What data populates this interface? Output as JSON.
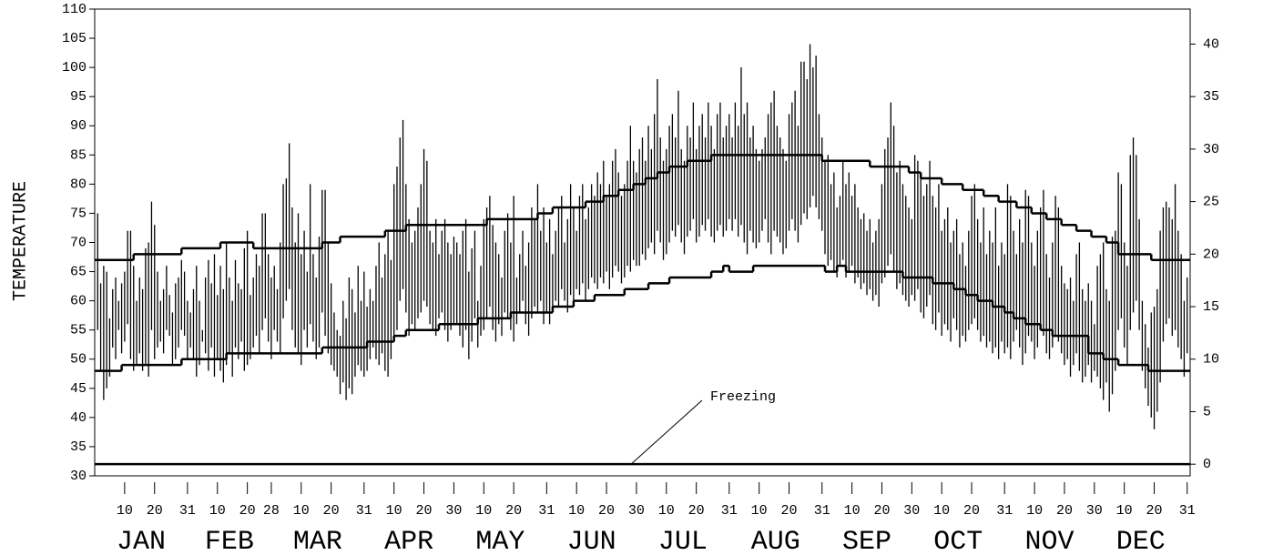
{
  "chart_data": {
    "type": "range",
    "y_label": "TEMPERATURE",
    "ylim": [
      30,
      110
    ],
    "yticks": [
      30,
      35,
      40,
      45,
      50,
      55,
      60,
      65,
      70,
      75,
      80,
      85,
      90,
      95,
      100,
      105,
      110
    ],
    "y2lim": [
      -1.11,
      43.33
    ],
    "y2ticks": [
      0,
      5,
      10,
      15,
      20,
      25,
      30,
      35,
      40
    ],
    "xlim": [
      0,
      366
    ],
    "xticks": [
      {
        "value": 10,
        "label": "10"
      },
      {
        "value": 20,
        "label": "20"
      },
      {
        "value": 31,
        "label": "31"
      },
      {
        "value": 41,
        "label": "10"
      },
      {
        "value": 51,
        "label": "20"
      },
      {
        "value": 59,
        "label": "28"
      },
      {
        "value": 69,
        "label": "10"
      },
      {
        "value": 79,
        "label": "20"
      },
      {
        "value": 90,
        "label": "31"
      },
      {
        "value": 100,
        "label": "10"
      },
      {
        "value": 110,
        "label": "20"
      },
      {
        "value": 120,
        "label": "30"
      },
      {
        "value": 130,
        "label": "10"
      },
      {
        "value": 140,
        "label": "20"
      },
      {
        "value": 151,
        "label": "31"
      },
      {
        "value": 161,
        "label": "10"
      },
      {
        "value": 171,
        "label": "20"
      },
      {
        "value": 181,
        "label": "30"
      },
      {
        "value": 191,
        "label": "10"
      },
      {
        "value": 201,
        "label": "20"
      },
      {
        "value": 212,
        "label": "31"
      },
      {
        "value": 222,
        "label": "10"
      },
      {
        "value": 232,
        "label": "20"
      },
      {
        "value": 243,
        "label": "31"
      },
      {
        "value": 253,
        "label": "10"
      },
      {
        "value": 263,
        "label": "20"
      },
      {
        "value": 273,
        "label": "30"
      },
      {
        "value": 283,
        "label": "10"
      },
      {
        "value": 293,
        "label": "20"
      },
      {
        "value": 304,
        "label": "31"
      },
      {
        "value": 314,
        "label": "10"
      },
      {
        "value": 324,
        "label": "20"
      },
      {
        "value": 334,
        "label": "30"
      },
      {
        "value": 344,
        "label": "10"
      },
      {
        "value": 354,
        "label": "20"
      },
      {
        "value": 365,
        "label": "31"
      }
    ],
    "months": [
      "JAN",
      "FEB",
      "MAR",
      "APR",
      "MAY",
      "JUN",
      "JUL",
      "AUG",
      "SEP",
      "OCT",
      "NOV",
      "DEC"
    ],
    "color": "#000000",
    "x": [
      1,
      2,
      3,
      4,
      5,
      6,
      7,
      8,
      9,
      10,
      11,
      12,
      13,
      14,
      15,
      16,
      17,
      18,
      19,
      20,
      21,
      22,
      23,
      24,
      25,
      26,
      27,
      28,
      29,
      30,
      31,
      32,
      33,
      34,
      35,
      36,
      37,
      38,
      39,
      40,
      41,
      42,
      43,
      44,
      45,
      46,
      47,
      48,
      49,
      50,
      51,
      52,
      53,
      54,
      55,
      56,
      57,
      58,
      59,
      60,
      61,
      62,
      63,
      64,
      65,
      66,
      67,
      68,
      69,
      70,
      71,
      72,
      73,
      74,
      75,
      76,
      77,
      78,
      79,
      80,
      81,
      82,
      83,
      84,
      85,
      86,
      87,
      88,
      89,
      90,
      91,
      92,
      93,
      94,
      95,
      96,
      97,
      98,
      99,
      100,
      101,
      102,
      103,
      104,
      105,
      106,
      107,
      108,
      109,
      110,
      111,
      112,
      113,
      114,
      115,
      116,
      117,
      118,
      119,
      120,
      121,
      122,
      123,
      124,
      125,
      126,
      127,
      128,
      129,
      130,
      131,
      132,
      133,
      134,
      135,
      136,
      137,
      138,
      139,
      140,
      141,
      142,
      143,
      144,
      145,
      146,
      147,
      148,
      149,
      150,
      151,
      152,
      153,
      154,
      155,
      156,
      157,
      158,
      159,
      160,
      161,
      162,
      163,
      164,
      165,
      166,
      167,
      168,
      169,
      170,
      171,
      172,
      173,
      174,
      175,
      176,
      177,
      178,
      179,
      180,
      181,
      182,
      183,
      184,
      185,
      186,
      187,
      188,
      189,
      190,
      191,
      192,
      193,
      194,
      195,
      196,
      197,
      198,
      199,
      200,
      201,
      202,
      203,
      204,
      205,
      206,
      207,
      208,
      209,
      210,
      211,
      212,
      213,
      214,
      215,
      216,
      217,
      218,
      219,
      220,
      221,
      222,
      223,
      224,
      225,
      226,
      227,
      228,
      229,
      230,
      231,
      232,
      233,
      234,
      235,
      236,
      237,
      238,
      239,
      240,
      241,
      242,
      243,
      244,
      245,
      246,
      247,
      248,
      249,
      250,
      251,
      252,
      253,
      254,
      255,
      256,
      257,
      258,
      259,
      260,
      261,
      262,
      263,
      264,
      265,
      266,
      267,
      268,
      269,
      270,
      271,
      272,
      273,
      274,
      275,
      276,
      277,
      278,
      279,
      280,
      281,
      282,
      283,
      284,
      285,
      286,
      287,
      288,
      289,
      290,
      291,
      292,
      293,
      294,
      295,
      296,
      297,
      298,
      299,
      300,
      301,
      302,
      303,
      304,
      305,
      306,
      307,
      308,
      309,
      310,
      311,
      312,
      313,
      314,
      315,
      316,
      317,
      318,
      319,
      320,
      321,
      322,
      323,
      324,
      325,
      326,
      327,
      328,
      329,
      330,
      331,
      332,
      333,
      334,
      335,
      336,
      337,
      338,
      339,
      340,
      341,
      342,
      343,
      344,
      345,
      346,
      347,
      348,
      349,
      350,
      351,
      352,
      353,
      354,
      355,
      356,
      357,
      358,
      359,
      360,
      361,
      362,
      363,
      364,
      365
    ],
    "low": [
      55,
      48,
      43,
      45,
      47,
      52,
      50,
      55,
      51,
      53,
      56,
      50,
      48,
      49,
      51,
      48,
      49,
      47,
      55,
      50,
      52,
      53,
      51,
      55,
      54,
      49,
      50,
      52,
      55,
      54,
      50,
      52,
      50,
      47,
      49,
      53,
      51,
      48,
      52,
      47,
      50,
      48,
      46,
      49,
      51,
      47,
      52,
      50,
      53,
      48,
      49,
      50,
      52,
      54,
      51,
      55,
      57,
      53,
      50,
      55,
      53,
      51,
      57,
      60,
      62,
      55,
      52,
      51,
      49,
      55,
      52,
      56,
      53,
      50,
      52,
      58,
      54,
      51,
      49,
      48,
      47,
      44,
      46,
      43,
      45,
      44,
      47,
      49,
      48,
      47,
      48,
      50,
      52,
      50,
      49,
      51,
      48,
      47,
      50,
      53,
      55,
      60,
      62,
      58,
      54,
      56,
      55,
      57,
      58,
      60,
      59,
      56,
      55,
      54,
      57,
      58,
      55,
      53,
      55,
      56,
      56,
      54,
      52,
      55,
      50,
      53,
      57,
      52,
      54,
      55,
      57,
      59,
      55,
      53,
      56,
      54,
      58,
      57,
      55,
      53,
      56,
      58,
      60,
      56,
      54,
      57,
      59,
      58,
      60,
      56,
      58,
      56,
      58,
      60,
      59,
      62,
      60,
      58,
      61,
      60,
      62,
      61,
      63,
      60,
      62,
      64,
      63,
      62,
      64,
      63,
      65,
      62,
      64,
      66,
      65,
      63,
      64,
      66,
      65,
      67,
      66,
      66,
      68,
      67,
      69,
      70,
      68,
      72,
      70,
      67,
      68,
      70,
      72,
      71,
      73,
      70,
      68,
      71,
      72,
      74,
      70,
      71,
      73,
      72,
      74,
      71,
      70,
      72,
      73,
      71,
      72,
      74,
      72,
      74,
      71,
      73,
      70,
      68,
      72,
      70,
      69,
      70,
      72,
      74,
      70,
      68,
      72,
      71,
      70,
      68,
      69,
      72,
      74,
      72,
      70,
      73,
      75,
      74,
      76,
      78,
      76,
      74,
      72,
      68,
      66,
      67,
      65,
      64,
      66,
      67,
      64,
      65,
      66,
      63,
      64,
      62,
      63,
      61,
      62,
      60,
      61,
      59,
      63,
      64,
      66,
      68,
      65,
      62,
      63,
      61,
      60,
      59,
      61,
      60,
      62,
      58,
      57,
      59,
      61,
      56,
      55,
      58,
      54,
      56,
      55,
      53,
      57,
      55,
      52,
      54,
      53,
      55,
      56,
      57,
      55,
      53,
      54,
      52,
      53,
      51,
      52,
      50,
      53,
      51,
      52,
      50,
      53,
      55,
      52,
      49,
      51,
      54,
      53,
      50,
      52,
      55,
      54,
      51,
      50,
      52,
      54,
      53,
      51,
      49,
      50,
      47,
      49,
      51,
      48,
      46,
      47,
      49,
      46,
      48,
      47,
      45,
      43,
      46,
      41,
      44,
      48,
      55,
      57,
      52,
      49,
      55,
      58,
      60,
      55,
      48,
      45,
      42,
      40,
      38,
      41,
      46,
      53,
      56,
      57,
      54,
      55,
      52,
      50,
      47,
      51
    ],
    "high": [
      75,
      63,
      66,
      65,
      57,
      62,
      64,
      60,
      63,
      65,
      72,
      72,
      66,
      60,
      64,
      62,
      69,
      70,
      77,
      73,
      65,
      60,
      62,
      66,
      61,
      58,
      63,
      64,
      67,
      65,
      60,
      58,
      62,
      66,
      60,
      55,
      64,
      67,
      63,
      68,
      61,
      66,
      62,
      70,
      64,
      60,
      67,
      63,
      62,
      69,
      72,
      61,
      64,
      68,
      66,
      75,
      75,
      68,
      64,
      66,
      62,
      70,
      80,
      81,
      87,
      76,
      70,
      75,
      68,
      72,
      65,
      80,
      68,
      64,
      71,
      79,
      79,
      70,
      63,
      58,
      55,
      54,
      60,
      57,
      64,
      62,
      58,
      66,
      60,
      65,
      59,
      62,
      60,
      66,
      70,
      64,
      68,
      72,
      67,
      80,
      83,
      88,
      91,
      80,
      74,
      70,
      72,
      76,
      80,
      86,
      84,
      72,
      70,
      74,
      68,
      72,
      74,
      70,
      68,
      71,
      70,
      68,
      72,
      74,
      65,
      69,
      72,
      60,
      66,
      74,
      76,
      78,
      73,
      70,
      68,
      64,
      72,
      75,
      70,
      78,
      64,
      68,
      72,
      66,
      70,
      76,
      74,
      80,
      72,
      76,
      70,
      74,
      68,
      72,
      76,
      78,
      70,
      74,
      80,
      76,
      72,
      78,
      80,
      74,
      76,
      80,
      78,
      82,
      80,
      84,
      78,
      80,
      84,
      86,
      82,
      78,
      80,
      84,
      90,
      84,
      82,
      86,
      88,
      84,
      90,
      86,
      92,
      98,
      88,
      84,
      86,
      90,
      92,
      88,
      96,
      86,
      84,
      90,
      88,
      94,
      86,
      90,
      92,
      88,
      94,
      90,
      86,
      92,
      94,
      88,
      90,
      92,
      88,
      94,
      90,
      100,
      92,
      94,
      88,
      90,
      86,
      84,
      86,
      88,
      92,
      94,
      96,
      90,
      88,
      86,
      84,
      92,
      94,
      96,
      90,
      101,
      101,
      98,
      104,
      100,
      102,
      92,
      88,
      84,
      85,
      80,
      82,
      76,
      78,
      84,
      80,
      82,
      78,
      80,
      76,
      74,
      75,
      72,
      74,
      70,
      72,
      74,
      80,
      86,
      88,
      94,
      90,
      82,
      84,
      80,
      78,
      76,
      74,
      85,
      84,
      82,
      78,
      80,
      84,
      78,
      76,
      80,
      72,
      74,
      76,
      70,
      72,
      74,
      68,
      70,
      66,
      72,
      78,
      80,
      74,
      70,
      76,
      68,
      72,
      70,
      76,
      66,
      70,
      68,
      80,
      78,
      72,
      68,
      74,
      70,
      79,
      78,
      70,
      66,
      72,
      76,
      79,
      68,
      64,
      70,
      78,
      76,
      66,
      63,
      62,
      64,
      60,
      68,
      70,
      62,
      60,
      63,
      60,
      56,
      66,
      68,
      70,
      62,
      60,
      71,
      72,
      82,
      80,
      70,
      66,
      85,
      88,
      85,
      74,
      60,
      56,
      52,
      58,
      59,
      62,
      72,
      76,
      77,
      76,
      74,
      80,
      72,
      68,
      60,
      64
    ],
    "normal_high": {
      "x": [
        1,
        13,
        29,
        42,
        53,
        76,
        82,
        97,
        104,
        131,
        148,
        153,
        164,
        170,
        175,
        180,
        184,
        188,
        192,
        198,
        206,
        243,
        259,
        272,
        276,
        283,
        290,
        297,
        302,
        308,
        313,
        318,
        323,
        328,
        333,
        338,
        342,
        353
      ],
      "values": [
        67,
        68,
        69,
        70,
        69,
        70,
        71,
        72,
        73,
        74,
        75,
        76,
        77,
        78,
        79,
        80,
        81,
        82,
        83,
        84,
        85,
        84,
        83,
        82,
        81,
        80,
        79,
        78,
        77,
        76,
        75,
        74,
        73,
        72,
        71,
        70,
        68,
        67
      ]
    },
    "normal_low": {
      "x": [
        1,
        9,
        29,
        44,
        76,
        91,
        100,
        104,
        115,
        128,
        139,
        153,
        160,
        167,
        177,
        185,
        192,
        206,
        210,
        212,
        220,
        244,
        248,
        251,
        270,
        280,
        287,
        291,
        295,
        300,
        304,
        307,
        311,
        316,
        320,
        332,
        337,
        342,
        352
      ],
      "values": [
        48,
        49,
        50,
        51,
        52,
        53,
        54,
        55,
        56,
        57,
        58,
        59,
        60,
        61,
        62,
        63,
        64,
        65,
        66,
        65,
        66,
        65,
        66,
        65,
        64,
        63,
        62,
        61,
        60,
        59,
        58,
        57,
        56,
        55,
        54,
        51,
        50,
        49,
        48
      ]
    },
    "freezing": {
      "value": 32,
      "label": "Freezing"
    }
  }
}
